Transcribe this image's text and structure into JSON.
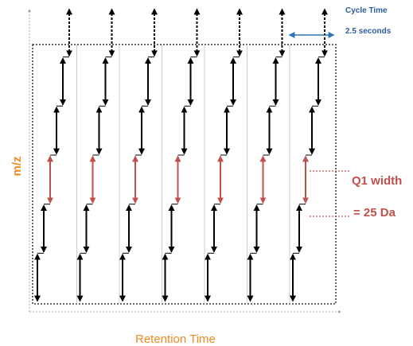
{
  "labels": {
    "cycle_time_title": "Cycle Time",
    "cycle_time_value": "2.5 seconds",
    "q1_width_label": "Q1 width",
    "q1_width_value": "= 25 Da",
    "y_axis": "m/z",
    "x_axis": "Retention Time"
  },
  "diagram": {
    "cycles": 7,
    "steps_per_cycle": 6,
    "highlighted_step": 2
  },
  "colors": {
    "step": "#000000",
    "highlight": "#c0504d",
    "cycle_marker": "#2e75b6",
    "axis_label": "#f08a24",
    "frame": "#333333",
    "divider": "#cccccc"
  }
}
